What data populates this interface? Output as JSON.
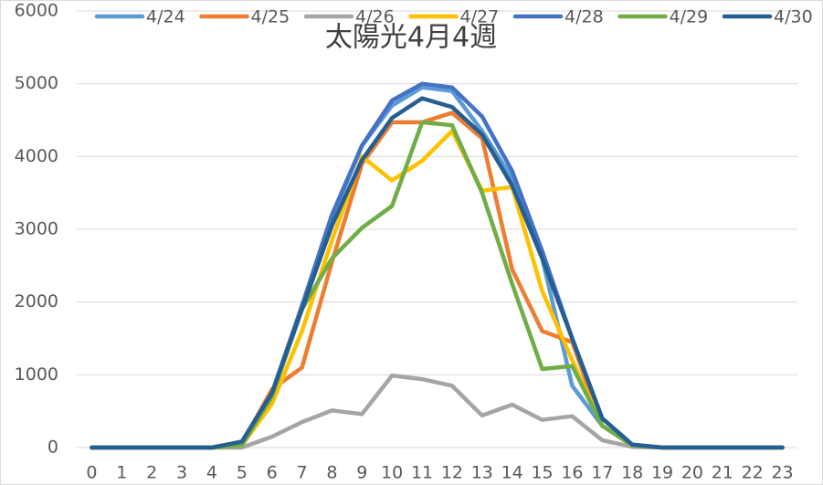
{
  "chart_data": {
    "type": "line",
    "title": "太陽光4月4週",
    "categories": [
      "0",
      "1",
      "2",
      "3",
      "4",
      "5",
      "6",
      "7",
      "8",
      "9",
      "10",
      "11",
      "12",
      "13",
      "14",
      "15",
      "16",
      "17",
      "18",
      "19",
      "20",
      "21",
      "22",
      "23"
    ],
    "series": [
      {
        "name": "4/24",
        "color": "#5b9bd5",
        "values": [
          0,
          0,
          0,
          0,
          0,
          80,
          700,
          1950,
          3150,
          4150,
          4700,
          4950,
          4900,
          4350,
          3700,
          2600,
          850,
          300,
          30,
          0,
          0,
          0,
          0,
          0
        ]
      },
      {
        "name": "4/25",
        "color": "#ed7d31",
        "values": [
          0,
          0,
          0,
          0,
          0,
          50,
          800,
          1100,
          2550,
          3900,
          4470,
          4470,
          4600,
          4250,
          2450,
          1600,
          1450,
          300,
          30,
          0,
          0,
          0,
          0,
          0
        ]
      },
      {
        "name": "4/26",
        "color": "#a5a5a5",
        "values": [
          0,
          0,
          0,
          0,
          0,
          0,
          150,
          350,
          510,
          460,
          990,
          940,
          850,
          440,
          590,
          380,
          430,
          100,
          10,
          0,
          0,
          0,
          0,
          0
        ]
      },
      {
        "name": "4/27",
        "color": "#ffc000",
        "values": [
          0,
          0,
          0,
          0,
          0,
          30,
          600,
          1600,
          2850,
          4000,
          3670,
          3940,
          4350,
          3530,
          3580,
          2150,
          1200,
          300,
          30,
          0,
          0,
          0,
          0,
          0
        ]
      },
      {
        "name": "4/28",
        "color": "#4472c4",
        "values": [
          0,
          0,
          0,
          0,
          0,
          80,
          750,
          1950,
          3200,
          4150,
          4770,
          5000,
          4950,
          4550,
          3800,
          2700,
          1500,
          400,
          40,
          0,
          0,
          0,
          0,
          0
        ]
      },
      {
        "name": "4/29",
        "color": "#70ad47",
        "values": [
          0,
          0,
          0,
          0,
          0,
          30,
          700,
          1900,
          2600,
          3020,
          3320,
          4470,
          4430,
          3500,
          2250,
          1080,
          1120,
          300,
          30,
          0,
          0,
          0,
          0,
          0
        ]
      },
      {
        "name": "4/30",
        "color": "#255e91",
        "values": [
          0,
          0,
          0,
          0,
          0,
          80,
          750,
          1900,
          3050,
          3950,
          4530,
          4800,
          4680,
          4300,
          3600,
          2600,
          1500,
          400,
          40,
          0,
          0,
          0,
          0,
          0
        ]
      }
    ],
    "ylim": [
      0,
      6000
    ],
    "yticks": [
      0,
      1000,
      2000,
      3000,
      4000,
      5000,
      6000
    ],
    "grid": true
  }
}
